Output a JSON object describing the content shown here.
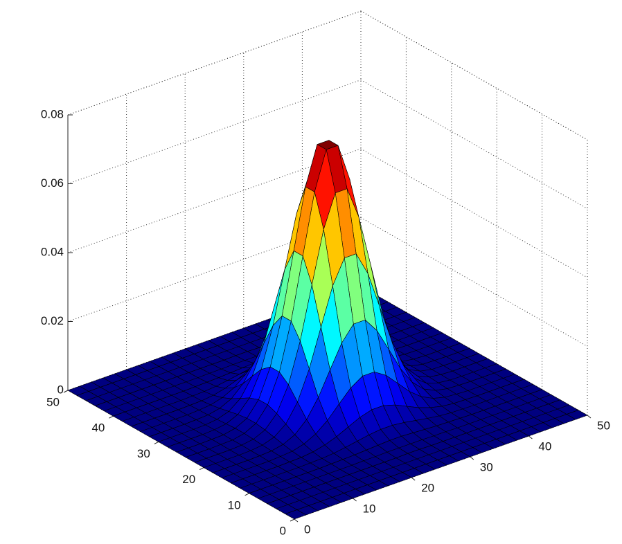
{
  "chart_data": {
    "type": "surface",
    "x": [
      0,
      2,
      4,
      6,
      8,
      10,
      12,
      14,
      16,
      18,
      20,
      22,
      24,
      26,
      28,
      30,
      32,
      34,
      36,
      38,
      40,
      42,
      44,
      46,
      48,
      50
    ],
    "y": [
      0,
      2,
      4,
      6,
      8,
      10,
      12,
      14,
      16,
      18,
      20,
      22,
      24,
      26,
      28,
      30,
      32,
      34,
      36,
      38,
      40,
      42,
      44,
      46,
      48,
      50
    ],
    "z": [
      [
        0,
        0,
        0,
        0,
        0,
        0,
        0,
        0,
        0,
        0,
        0,
        0,
        0,
        0,
        0,
        0,
        0,
        0,
        0,
        0,
        0,
        0,
        0,
        0,
        0,
        0
      ],
      [
        0,
        0,
        0,
        0,
        0,
        0,
        0,
        0,
        0,
        0,
        0,
        0,
        0,
        0,
        0,
        0,
        0,
        0,
        0,
        0,
        0,
        0,
        0,
        0,
        0,
        0
      ],
      [
        0,
        0,
        0,
        0,
        0,
        0,
        0,
        0,
        0,
        0,
        0,
        0,
        0,
        0,
        0,
        0,
        0,
        0,
        0,
        0,
        0,
        0,
        0,
        0,
        0,
        0
      ],
      [
        0,
        0,
        0,
        0,
        0,
        0,
        0,
        0,
        0,
        0,
        0,
        0,
        0.0001,
        0.0001,
        0,
        0,
        0,
        0,
        0,
        0,
        0,
        0,
        0,
        0,
        0,
        0
      ],
      [
        0,
        0,
        0,
        0,
        0,
        0,
        0,
        0,
        0,
        0.0001,
        0.0001,
        0.0002,
        0.0002,
        0.0002,
        0.0002,
        0.0001,
        0.0001,
        0,
        0,
        0,
        0,
        0,
        0,
        0,
        0,
        0
      ],
      [
        0,
        0,
        0,
        0,
        0,
        0,
        0,
        0.0001,
        0.0002,
        0.0003,
        0.0005,
        0.0007,
        0.0009,
        0.0009,
        0.0007,
        0.0005,
        0.0003,
        0.0002,
        0.0001,
        0,
        0,
        0,
        0,
        0,
        0,
        0
      ],
      [
        0,
        0,
        0,
        0,
        0,
        0,
        0.0001,
        0.0002,
        0.0005,
        0.001,
        0.0016,
        0.0022,
        0.0026,
        0.0026,
        0.0022,
        0.0016,
        0.001,
        0.0005,
        0.0002,
        0.0001,
        0,
        0,
        0,
        0,
        0,
        0
      ],
      [
        0,
        0,
        0,
        0,
        0,
        0.0001,
        0.0002,
        0.0006,
        0.0014,
        0.0026,
        0.0042,
        0.0058,
        0.0068,
        0.0068,
        0.0058,
        0.0042,
        0.0026,
        0.0014,
        0.0006,
        0.0002,
        0.0001,
        0,
        0,
        0,
        0,
        0
      ],
      [
        0,
        0,
        0,
        0,
        0,
        0.0002,
        0.0005,
        0.0014,
        0.0031,
        0.0058,
        0.0094,
        0.0129,
        0.0151,
        0.0151,
        0.0129,
        0.0094,
        0.0058,
        0.0031,
        0.0014,
        0.0005,
        0.0002,
        0,
        0,
        0,
        0,
        0
      ],
      [
        0,
        0,
        0,
        0,
        0.0001,
        0.0003,
        0.001,
        0.0026,
        0.0058,
        0.011,
        0.0178,
        0.0244,
        0.0287,
        0.0287,
        0.0244,
        0.0178,
        0.011,
        0.0058,
        0.0026,
        0.001,
        0.0003,
        0.0001,
        0,
        0,
        0,
        0
      ],
      [
        0,
        0,
        0,
        0,
        0.0001,
        0.0005,
        0.0016,
        0.0042,
        0.0094,
        0.0178,
        0.0287,
        0.0395,
        0.0464,
        0.0464,
        0.0395,
        0.0287,
        0.0178,
        0.0094,
        0.0042,
        0.0016,
        0.0005,
        0.0001,
        0,
        0,
        0,
        0
      ],
      [
        0,
        0,
        0,
        0,
        0.0002,
        0.0007,
        0.0022,
        0.0058,
        0.0129,
        0.0244,
        0.0395,
        0.0544,
        0.0638,
        0.0638,
        0.0544,
        0.0395,
        0.0244,
        0.0129,
        0.0058,
        0.0022,
        0.0007,
        0.0002,
        0,
        0,
        0,
        0
      ],
      [
        0,
        0,
        0,
        0.0001,
        0.0002,
        0.0009,
        0.0026,
        0.0068,
        0.0151,
        0.0287,
        0.0464,
        0.0638,
        0.0749,
        0.0749,
        0.0638,
        0.0464,
        0.0287,
        0.0151,
        0.0068,
        0.0026,
        0.0009,
        0.0002,
        0.0001,
        0,
        0,
        0
      ],
      [
        0,
        0,
        0,
        0.0001,
        0.0002,
        0.0009,
        0.0026,
        0.0068,
        0.0151,
        0.0287,
        0.0464,
        0.0638,
        0.0749,
        0.0749,
        0.0638,
        0.0464,
        0.0287,
        0.0151,
        0.0068,
        0.0026,
        0.0009,
        0.0002,
        0.0001,
        0,
        0,
        0
      ],
      [
        0,
        0,
        0,
        0,
        0.0002,
        0.0007,
        0.0022,
        0.0058,
        0.0129,
        0.0244,
        0.0395,
        0.0544,
        0.0638,
        0.0638,
        0.0544,
        0.0395,
        0.0244,
        0.0129,
        0.0058,
        0.0022,
        0.0007,
        0.0002,
        0,
        0,
        0,
        0
      ],
      [
        0,
        0,
        0,
        0,
        0.0001,
        0.0005,
        0.0016,
        0.0042,
        0.0094,
        0.0178,
        0.0287,
        0.0395,
        0.0464,
        0.0464,
        0.0395,
        0.0287,
        0.0178,
        0.0094,
        0.0042,
        0.0016,
        0.0005,
        0.0001,
        0,
        0,
        0,
        0
      ],
      [
        0,
        0,
        0,
        0,
        0.0001,
        0.0003,
        0.001,
        0.0026,
        0.0058,
        0.011,
        0.0178,
        0.0244,
        0.0287,
        0.0287,
        0.0244,
        0.0178,
        0.011,
        0.0058,
        0.0026,
        0.001,
        0.0003,
        0.0001,
        0,
        0,
        0,
        0
      ],
      [
        0,
        0,
        0,
        0,
        0,
        0.0002,
        0.0005,
        0.0014,
        0.0031,
        0.0058,
        0.0094,
        0.0129,
        0.0151,
        0.0151,
        0.0129,
        0.0094,
        0.0058,
        0.0031,
        0.0014,
        0.0005,
        0.0002,
        0,
        0,
        0,
        0,
        0
      ],
      [
        0,
        0,
        0,
        0,
        0,
        0.0001,
        0.0002,
        0.0006,
        0.0014,
        0.0026,
        0.0042,
        0.0058,
        0.0068,
        0.0068,
        0.0058,
        0.0042,
        0.0026,
        0.0014,
        0.0006,
        0.0002,
        0.0001,
        0,
        0,
        0,
        0,
        0
      ],
      [
        0,
        0,
        0,
        0,
        0,
        0,
        0.0001,
        0.0002,
        0.0005,
        0.001,
        0.0016,
        0.0022,
        0.0026,
        0.0026,
        0.0022,
        0.0016,
        0.001,
        0.0005,
        0.0002,
        0.0001,
        0,
        0,
        0,
        0,
        0,
        0
      ],
      [
        0,
        0,
        0,
        0,
        0,
        0,
        0,
        0.0001,
        0.0002,
        0.0003,
        0.0005,
        0.0007,
        0.0009,
        0.0009,
        0.0007,
        0.0005,
        0.0003,
        0.0002,
        0.0001,
        0,
        0,
        0,
        0,
        0,
        0,
        0
      ],
      [
        0,
        0,
        0,
        0,
        0,
        0,
        0,
        0,
        0,
        0.0001,
        0.0001,
        0.0002,
        0.0002,
        0.0002,
        0.0002,
        0.0001,
        0.0001,
        0,
        0,
        0,
        0,
        0,
        0,
        0,
        0,
        0
      ],
      [
        0,
        0,
        0,
        0,
        0,
        0,
        0,
        0,
        0,
        0,
        0,
        0,
        0.0001,
        0.0001,
        0,
        0,
        0,
        0,
        0,
        0,
        0,
        0,
        0,
        0,
        0,
        0
      ],
      [
        0,
        0,
        0,
        0,
        0,
        0,
        0,
        0,
        0,
        0,
        0,
        0,
        0,
        0,
        0,
        0,
        0,
        0,
        0,
        0,
        0,
        0,
        0,
        0,
        0,
        0
      ],
      [
        0,
        0,
        0,
        0,
        0,
        0,
        0,
        0,
        0,
        0,
        0,
        0,
        0,
        0,
        0,
        0,
        0,
        0,
        0,
        0,
        0,
        0,
        0,
        0,
        0,
        0
      ],
      [
        0,
        0,
        0,
        0,
        0,
        0,
        0,
        0,
        0,
        0,
        0,
        0,
        0,
        0,
        0,
        0,
        0,
        0,
        0,
        0,
        0,
        0,
        0,
        0,
        0,
        0
      ]
    ],
    "xlim": [
      0,
      50
    ],
    "ylim": [
      0,
      50
    ],
    "zlim": [
      0,
      0.08
    ],
    "xticks": [
      0,
      10,
      20,
      30,
      40,
      50
    ],
    "yticks": [
      0,
      10,
      20,
      30,
      40,
      50
    ],
    "zticks": [
      0,
      0.02,
      0.04,
      0.06,
      0.08
    ],
    "grid": true,
    "colormap": "jet",
    "edgecolor": "#000000"
  }
}
